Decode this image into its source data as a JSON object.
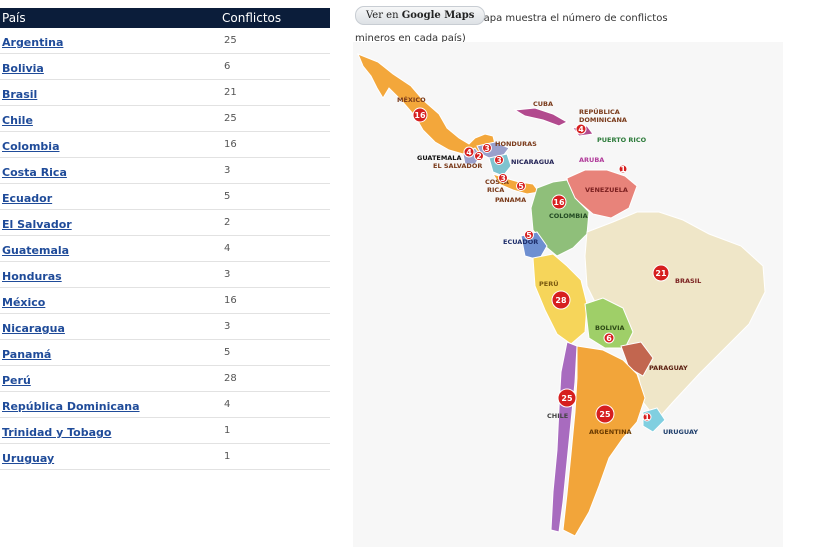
{
  "table": {
    "header": {
      "country": "País",
      "conflicts": "Conflictos"
    },
    "rows": [
      {
        "country": "Argentina",
        "conflicts": "25"
      },
      {
        "country": "Bolivia",
        "conflicts": "6"
      },
      {
        "country": "Brasil",
        "conflicts": "21"
      },
      {
        "country": "Chile",
        "conflicts": "25"
      },
      {
        "country": "Colombia",
        "conflicts": "16"
      },
      {
        "country": "Costa Rica",
        "conflicts": "3"
      },
      {
        "country": "Ecuador",
        "conflicts": "5"
      },
      {
        "country": "El Salvador",
        "conflicts": "2"
      },
      {
        "country": "Guatemala",
        "conflicts": "4"
      },
      {
        "country": "Honduras",
        "conflicts": "3"
      },
      {
        "country": "México",
        "conflicts": "16"
      },
      {
        "country": "Nicaragua",
        "conflicts": "3"
      },
      {
        "country": "Panamá",
        "conflicts": "5"
      },
      {
        "country": "Perú",
        "conflicts": "28"
      },
      {
        "country": "República Dominicana",
        "conflicts": "4"
      },
      {
        "country": "Trinidad y Tobago",
        "conflicts": "1"
      },
      {
        "country": "Uruguay",
        "conflicts": "1"
      }
    ]
  },
  "map_button": {
    "label_prefix": "Ver en ",
    "label_brand": "Google Maps"
  },
  "map_note": "(mapa muestra el número de conflictos mineros en cada país)",
  "map": {
    "labels": {
      "mexico": "MÉXICO",
      "cuba": "CUBA",
      "rep_dom_1": "REPÚBLICA",
      "rep_dom_2": "DOMINICANA",
      "puerto_rico": "PUERTO RICO",
      "honduras": "HONDURAS",
      "guatemala": "GUATEMALA",
      "el_salvador": "EL SALVADOR",
      "nicaragua": "NICARAGUA",
      "aruba": "ARUBA",
      "costa_rica_1": "COSTA",
      "costa_rica_2": "RICA",
      "panama": "PANAMA",
      "venezuela": "VENEZUELA",
      "colombia": "COLOMBIA",
      "ecuador": "ECUADOR",
      "peru": "PERÚ",
      "brasil": "BRASIL",
      "bolivia": "BOLIVIA",
      "paraguay": "PARAGUAY",
      "chile": "CHILE",
      "argentina": "ARGENTINA",
      "uruguay": "URUGUAY"
    },
    "markers": {
      "mexico": "16",
      "rep_dom": "4",
      "guatemala": "4",
      "honduras": "3",
      "el_salvador": "2",
      "nicaragua": "3",
      "costa_rica": "3",
      "panama": "5",
      "trinidad": "1",
      "colombia": "16",
      "ecuador": "5",
      "peru": "28",
      "brasil": "21",
      "bolivia": "6",
      "chile": "25",
      "argentina": "25",
      "uruguay": "1"
    },
    "colors": {
      "mexico": "#f3a73b",
      "cuba": "#b24a8e",
      "honduras": "#9aa0cc",
      "nicaragua": "#7fc3cf",
      "venezuela": "#e8837a",
      "colombia": "#8fbf7a",
      "ecuador": "#6e8fd1",
      "peru": "#f6d55a",
      "brasil": "#efe6c8",
      "bolivia": "#9fcf68",
      "paraguay": "#c2664f",
      "chile": "#a86bbf",
      "argentina": "#f2a53a",
      "uruguay": "#80cfe0",
      "marker": "#d61f1f"
    }
  }
}
